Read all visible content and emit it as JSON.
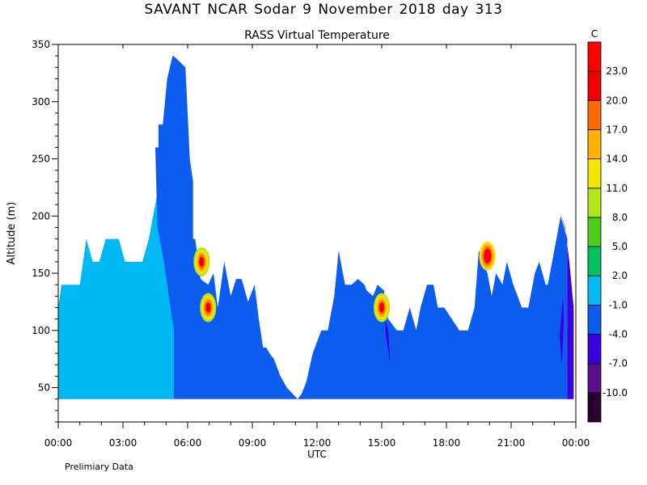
{
  "header": {
    "title": "SAVANT   NCAR Sodar   9 November 2018  day 313",
    "subtitle": "RASS Virtual Temperature",
    "footnote": "Prelimiary Data"
  },
  "chart_data": {
    "type": "area",
    "title": "RASS Virtual Temperature",
    "xlabel": "UTC",
    "ylabel": "Altitude (m)",
    "xlim": [
      0,
      24
    ],
    "ylim": [
      20,
      350
    ],
    "x_tick_labels": [
      "00:00",
      "03:00",
      "06:00",
      "09:00",
      "12:00",
      "15:00",
      "18:00",
      "21:00",
      "00:00"
    ],
    "y_tick_labels": [
      "50",
      "100",
      "150",
      "200",
      "250",
      "300",
      "350"
    ],
    "colorbar": {
      "unit": "C",
      "levels": [
        "-10.0",
        "-7.0",
        "-4.0",
        "-1.0",
        "2.0",
        "5.0",
        "8.0",
        "11.0",
        "14.0",
        "17.0",
        "20.0",
        "23.0"
      ],
      "colors": [
        "#2a0030",
        "#5a0f8a",
        "#3700dd",
        "#0d5cf0",
        "#00b8f2",
        "#00c060",
        "#4ccd1a",
        "#b3e61a",
        "#f5e600",
        "#ffb000",
        "#ff6a00",
        "#ee0000",
        "#ff0000"
      ]
    },
    "regions": [
      {
        "name": "2.0 to 5.0 C (early hours)",
        "color_index": 4,
        "x": [
          0,
          0,
          0.15,
          1,
          1.3,
          1.6,
          1.9,
          2.2,
          2.8,
          3.1,
          3.9,
          4.2,
          4.4,
          4.6,
          4.9,
          5.1,
          5.35,
          5.35
        ],
        "y": [
          40,
          120,
          140,
          140,
          180,
          160,
          160,
          180,
          180,
          160,
          160,
          180,
          200,
          220,
          190,
          165,
          100,
          40
        ]
      },
      {
        "name": "-1.0 to 2.0 C",
        "color_index": 3,
        "x": [
          5.35,
          5.35,
          4.9,
          4.6,
          4.5,
          4.65,
          4.65,
          4.85,
          5.05,
          5.3,
          5.35,
          5.9,
          6.1,
          6.25,
          6.25,
          6.35,
          6.6,
          6.95,
          7.2,
          7.4,
          7.7,
          8.0,
          8.25,
          8.5,
          8.8,
          9.1,
          9.3,
          9.5,
          9.65,
          9.8,
          10.0,
          10.3,
          10.6,
          11.1,
          11.3,
          11.5,
          11.8,
          12.2,
          12.5,
          12.8,
          13.0,
          13.1,
          13.3,
          13.6,
          13.9,
          14.2,
          14.3,
          14.6,
          14.8,
          15.1,
          15.3,
          15.7,
          16.0,
          16.3,
          16.6,
          16.8,
          17.1,
          17.4,
          17.6,
          17.9,
          18.6,
          19.0,
          19.3,
          19.5,
          19.7,
          19.9,
          20.1,
          20.3,
          20.6,
          20.8,
          21.1,
          21.5,
          21.8,
          22.1,
          22.3,
          22.6,
          22.7,
          22.9,
          23.3,
          23.6,
          23.6
        ],
        "y": [
          40,
          100,
          160,
          190,
          260,
          260,
          280,
          280,
          320,
          340,
          340,
          330,
          250,
          230,
          180,
          180,
          145,
          140,
          150,
          120,
          160,
          130,
          145,
          145,
          125,
          140,
          110,
          85,
          85,
          80,
          75,
          60,
          50,
          40,
          45,
          55,
          80,
          100,
          100,
          130,
          170,
          160,
          140,
          140,
          145,
          140,
          135,
          130,
          140,
          135,
          110,
          100,
          100,
          120,
          100,
          120,
          140,
          140,
          120,
          120,
          100,
          100,
          120,
          170,
          160,
          150,
          130,
          150,
          140,
          160,
          140,
          120,
          120,
          150,
          160,
          140,
          140,
          160,
          200,
          180,
          40
        ]
      },
      {
        "name": "-4.0 to -1.0 C (late edge)",
        "color_index": 2,
        "x": [
          23.6,
          23.6,
          23.35,
          23.5,
          23.7,
          23.9,
          23.9
        ],
        "y": [
          40,
          180,
          200,
          190,
          160,
          120,
          40
        ]
      },
      {
        "name": "-4.0 to -1.0 C (notch near 15:00)",
        "color_index": 2,
        "x": [
          15.15,
          15.3,
          15.4,
          15.2
        ],
        "y": [
          110,
          100,
          70,
          95
        ]
      },
      {
        "name": "-4.0 to -1.0 C (late trough)",
        "color_index": 2,
        "x": [
          23.25,
          23.35,
          23.45,
          23.4
        ],
        "y": [
          95,
          70,
          110,
          130
        ]
      }
    ],
    "hotspots": [
      {
        "name": "hotspot near 06:40",
        "x": 6.65,
        "y": 160,
        "max_index": 11
      },
      {
        "name": "hotspot near 07:00",
        "x": 6.95,
        "y": 120,
        "max_index": 11
      },
      {
        "name": "hotspot near 15:00",
        "x": 15.0,
        "y": 120,
        "max_index": 11
      },
      {
        "name": "hotspot near 19:50",
        "x": 19.9,
        "y": 165,
        "max_index": 12
      }
    ],
    "grid": false,
    "legend": "colorbar right"
  }
}
